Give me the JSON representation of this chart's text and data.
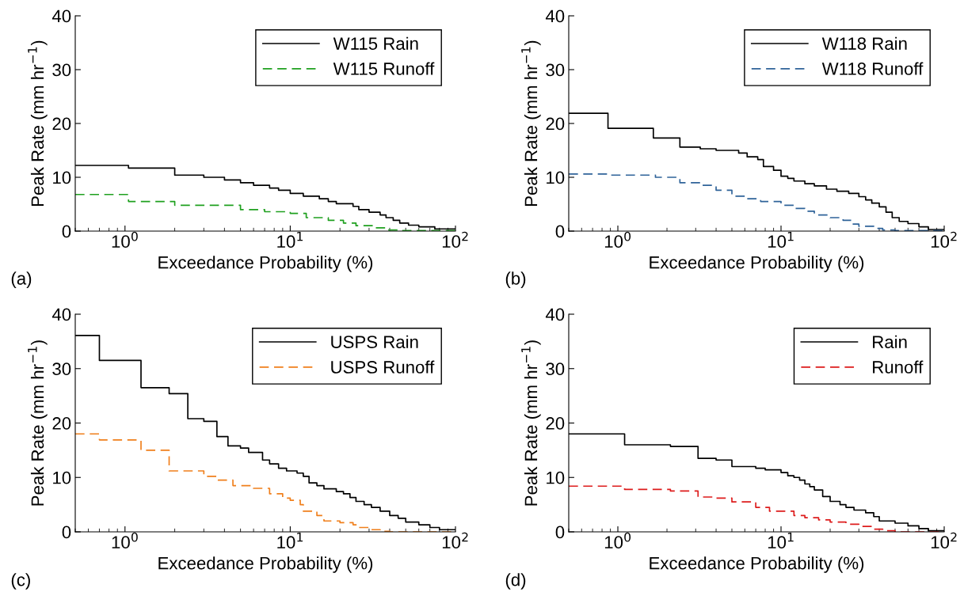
{
  "chart_data": [
    {
      "type": "step",
      "xlabel": "Exceedance Probability (%)",
      "ylabel": "Peak Rate (mm hr$^{−1}$)",
      "annotations": [
        "(a)"
      ],
      "log": "x",
      "xlim": [
        0.5,
        100
      ],
      "xticks": [
        {
          "value": 1,
          "label": "10$^{0}$"
        },
        {
          "value": 10,
          "label": "10$^{1}$"
        },
        {
          "value": 100,
          "label": "10$^{2}$"
        }
      ],
      "ylim": [
        0,
        40
      ],
      "yticks": [
        0,
        10,
        20,
        30,
        40
      ],
      "grid": false,
      "legend": "top right",
      "series": [
        {
          "name": "W115 Rain",
          "color": "#000000",
          "line_style": "solid",
          "x": [
            0.5,
            1.05,
            2.0,
            3.0,
            4.0,
            5.0,
            6.0,
            7.5,
            8.5,
            10,
            12,
            15,
            17,
            19,
            24,
            26,
            30,
            35,
            38,
            42,
            46,
            52,
            60,
            75,
            100
          ],
          "values": [
            12.2,
            11.7,
            10.4,
            10.0,
            9.5,
            9.0,
            8.5,
            8.0,
            7.6,
            7.0,
            6.5,
            6.0,
            5.5,
            5.1,
            4.6,
            4.0,
            3.5,
            3.0,
            2.5,
            2.0,
            1.5,
            1.1,
            0.8,
            0.4,
            0.4
          ]
        },
        {
          "name": "W115 Runoff",
          "color": "#1fa01f",
          "line_style": "dashed",
          "x": [
            0.5,
            1.05,
            2.0,
            5.0,
            7.0,
            10,
            12.5,
            17,
            21,
            25,
            32,
            38,
            45,
            100
          ],
          "values": [
            6.8,
            5.5,
            4.8,
            4.0,
            3.6,
            3.3,
            2.5,
            2.0,
            1.5,
            1.0,
            0.6,
            0.2,
            0.1,
            0.1
          ]
        }
      ]
    },
    {
      "type": "step",
      "xlabel": "Exceedance Probability (%)",
      "ylabel": "Peak Rate (mm hr$^{−1}$)",
      "annotations": [
        "(b)"
      ],
      "log": "x",
      "xlim": [
        0.5,
        100
      ],
      "xticks": [
        {
          "value": 1,
          "label": "10$^{0}$"
        },
        {
          "value": 10,
          "label": "10$^{1}$"
        },
        {
          "value": 100,
          "label": "10$^{2}$"
        }
      ],
      "ylim": [
        0,
        40
      ],
      "yticks": [
        0,
        10,
        20,
        30,
        40
      ],
      "grid": false,
      "legend": "top right",
      "series": [
        {
          "name": "W118 Rain",
          "color": "#000000",
          "line_style": "solid",
          "x": [
            0.5,
            0.87,
            1.65,
            2.4,
            3.2,
            4.0,
            5.5,
            6.2,
            7.2,
            7.8,
            9.0,
            10,
            11,
            12,
            14,
            16,
            19,
            22,
            26,
            30,
            33,
            36,
            40,
            44,
            48,
            53,
            60,
            70,
            80,
            100
          ],
          "values": [
            21.9,
            19.1,
            17.3,
            15.6,
            15.3,
            15.0,
            14.5,
            13.8,
            13.3,
            12.0,
            11.3,
            10.2,
            9.8,
            9.3,
            8.8,
            8.4,
            7.8,
            7.4,
            7.0,
            6.4,
            5.8,
            5.2,
            4.5,
            3.5,
            2.5,
            1.8,
            1.4,
            0.8,
            0.3,
            0.3
          ]
        },
        {
          "name": "W118 Runoff",
          "color": "#2f6399",
          "line_style": "dashed",
          "x": [
            0.5,
            0.9,
            1.7,
            2.4,
            3.2,
            4.0,
            5.0,
            6.0,
            7.5,
            10,
            12,
            14,
            16,
            20,
            24,
            27,
            30,
            37,
            42,
            50,
            100
          ],
          "values": [
            10.6,
            10.4,
            10.0,
            9.0,
            8.5,
            7.6,
            6.5,
            6.0,
            5.5,
            4.8,
            4.2,
            3.7,
            3.0,
            2.5,
            2.0,
            1.3,
            0.9,
            0.5,
            0.2,
            0.1,
            0.1
          ]
        }
      ]
    },
    {
      "type": "step",
      "xlabel": "Exceedance Probability (%)",
      "ylabel": "Peak Rate (mm hr$^{−1}$)",
      "annotations": [
        "(c)"
      ],
      "log": "x",
      "xlim": [
        0.5,
        100
      ],
      "xticks": [
        {
          "value": 1,
          "label": "10$^{0}$"
        },
        {
          "value": 10,
          "label": "10$^{1}$"
        },
        {
          "value": 100,
          "label": "10$^{2}$"
        }
      ],
      "ylim": [
        0,
        40
      ],
      "yticks": [
        0,
        10,
        20,
        30,
        40
      ],
      "grid": false,
      "legend": "top right",
      "series": [
        {
          "name": "USPS Rain",
          "color": "#000000",
          "line_style": "solid",
          "x": [
            0.5,
            0.7,
            1.25,
            1.85,
            2.4,
            3.0,
            3.6,
            4.2,
            5.0,
            5.6,
            6.8,
            7.5,
            8.5,
            9.5,
            11,
            12,
            13,
            14.5,
            16,
            19,
            21,
            23,
            25,
            28,
            31,
            35,
            40,
            45,
            50,
            60,
            70,
            80,
            100
          ],
          "values": [
            36.1,
            31.5,
            26.5,
            25.4,
            20.8,
            20.3,
            17.5,
            15.8,
            15.4,
            14.6,
            13.2,
            12.5,
            11.7,
            11.2,
            10.8,
            10.2,
            9.0,
            8.5,
            7.9,
            7.4,
            7.0,
            6.3,
            5.6,
            5.0,
            4.5,
            3.8,
            3.0,
            2.5,
            1.8,
            1.3,
            0.8,
            0.4,
            0.4
          ]
        },
        {
          "name": "USPS Runoff",
          "color": "#f07f1b",
          "line_style": "dashed",
          "x": [
            0.5,
            0.7,
            1.25,
            1.85,
            3.0,
            3.6,
            4.5,
            6.0,
            7.5,
            9.0,
            10,
            11.5,
            12,
            14.5,
            16,
            20,
            24,
            26,
            30,
            35,
            40,
            100
          ],
          "values": [
            18.0,
            16.9,
            15.0,
            11.2,
            10.2,
            9.5,
            8.5,
            8.0,
            7.0,
            6.2,
            5.8,
            5.0,
            3.8,
            3.0,
            2.0,
            1.7,
            1.3,
            0.8,
            0.4,
            0.1,
            0,
            0
          ]
        }
      ]
    },
    {
      "type": "step",
      "xlabel": "Exceedance Probability (%)",
      "ylabel": "Peak Rate (mm hr$^{−1}$)",
      "annotations": [
        "(d)"
      ],
      "log": "x",
      "xlim": [
        0.5,
        100
      ],
      "xticks": [
        {
          "value": 1,
          "label": "10$^{0}$"
        },
        {
          "value": 10,
          "label": "10$^{1}$"
        },
        {
          "value": 100,
          "label": "10$^{2}$"
        }
      ],
      "ylim": [
        0,
        40
      ],
      "yticks": [
        0,
        10,
        20,
        30,
        40
      ],
      "grid": false,
      "legend": "top right",
      "series": [
        {
          "name": "Rain",
          "color": "#000000",
          "line_style": "solid",
          "x": [
            0.5,
            1.1,
            2.1,
            3.1,
            4.0,
            5.0,
            7.0,
            8.0,
            10,
            11,
            12,
            13,
            14,
            15,
            16,
            18,
            20,
            23,
            25,
            28,
            33,
            37,
            40,
            50,
            60,
            70,
            80,
            100
          ],
          "values": [
            18.0,
            16.0,
            15.7,
            13.5,
            13.2,
            12.0,
            11.7,
            11.4,
            10.9,
            10.3,
            10.0,
            9.5,
            8.8,
            8.3,
            7.7,
            6.5,
            5.6,
            5.0,
            4.5,
            4.0,
            3.5,
            2.8,
            2.0,
            1.6,
            1.1,
            0.6,
            0.2,
            0.2
          ]
        },
        {
          "name": "Runoff",
          "color": "#dd1c1c",
          "line_style": "dashed",
          "x": [
            0.5,
            1.1,
            2.1,
            3.1,
            4.0,
            5.0,
            7.0,
            8.5,
            12,
            14,
            17,
            20,
            25,
            30,
            36,
            42,
            50,
            100
          ],
          "values": [
            8.4,
            7.8,
            7.5,
            6.4,
            6.2,
            5.5,
            4.5,
            3.8,
            3.0,
            2.6,
            2.2,
            1.8,
            1.4,
            1.0,
            0.5,
            0.2,
            0,
            0
          ]
        }
      ]
    }
  ]
}
